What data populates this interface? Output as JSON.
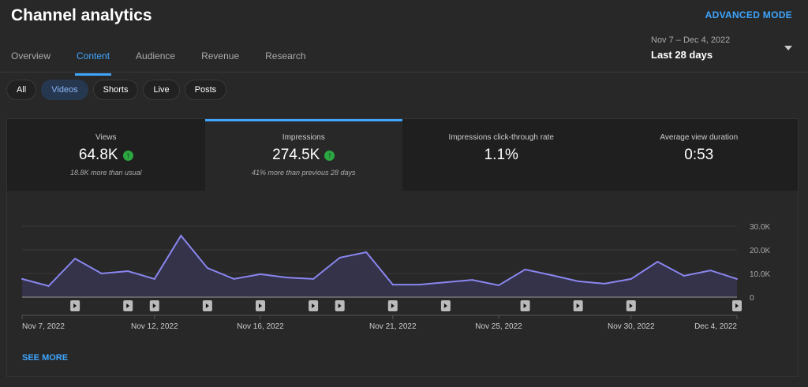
{
  "header": {
    "title": "Channel analytics",
    "advanced_mode": "ADVANCED MODE",
    "date_range": "Nov 7 – Dec 4, 2022",
    "period": "Last 28 days"
  },
  "tabs": [
    {
      "label": "Overview"
    },
    {
      "label": "Content",
      "active": true
    },
    {
      "label": "Audience"
    },
    {
      "label": "Revenue"
    },
    {
      "label": "Research"
    }
  ],
  "chips": [
    {
      "label": "All"
    },
    {
      "label": "Videos",
      "active": true
    },
    {
      "label": "Shorts"
    },
    {
      "label": "Live"
    },
    {
      "label": "Posts"
    }
  ],
  "cards": [
    {
      "label": "Views",
      "value": "64.8K",
      "trend": "up",
      "note": "18.8K more than usual"
    },
    {
      "label": "Impressions",
      "value": "274.5K",
      "trend": "up",
      "note": "41% more than previous 28 days",
      "active": true
    },
    {
      "label": "Impressions click-through rate",
      "value": "1.1%"
    },
    {
      "label": "Average view duration",
      "value": "0:53"
    }
  ],
  "see_more": "SEE MORE",
  "colors": {
    "accent": "#3ea6ff",
    "line": "#8a86f0",
    "up": "#2ba640"
  },
  "chart_data": {
    "type": "area",
    "x": [
      "Nov 7",
      "Nov 8",
      "Nov 9",
      "Nov 10",
      "Nov 11",
      "Nov 12",
      "Nov 13",
      "Nov 14",
      "Nov 15",
      "Nov 16",
      "Nov 17",
      "Nov 18",
      "Nov 19",
      "Nov 20",
      "Nov 21",
      "Nov 22",
      "Nov 23",
      "Nov 24",
      "Nov 25",
      "Nov 26",
      "Nov 27",
      "Nov 28",
      "Nov 29",
      "Nov 30",
      "Dec 1",
      "Dec 2",
      "Dec 3",
      "Dec 4"
    ],
    "values": [
      7700,
      4700,
      16300,
      10000,
      11000,
      7700,
      26000,
      12300,
      7700,
      9700,
      8300,
      7700,
      16700,
      19000,
      5300,
      5300,
      6300,
      7300,
      5000,
      11700,
      9300,
      6700,
      5700,
      7700,
      15000,
      9000,
      11300,
      7700
    ],
    "ylim": [
      0,
      30000
    ],
    "yticks": [
      "0",
      "10.0K",
      "20.0K",
      "30.0K"
    ],
    "xtick_labels": [
      {
        "label": "Nov 7, 2022",
        "i": 0
      },
      {
        "label": "Nov 12, 2022",
        "i": 5
      },
      {
        "label": "Nov 16, 2022",
        "i": 9
      },
      {
        "label": "Nov 21, 2022",
        "i": 14
      },
      {
        "label": "Nov 25, 2022",
        "i": 18
      },
      {
        "label": "Nov 30, 2022",
        "i": 23
      },
      {
        "label": "Dec 4, 2022",
        "i": 27
      }
    ],
    "video_markers": [
      2,
      4,
      5,
      7,
      9,
      11,
      12,
      14,
      16,
      19,
      21,
      23,
      27
    ],
    "grid": true
  }
}
